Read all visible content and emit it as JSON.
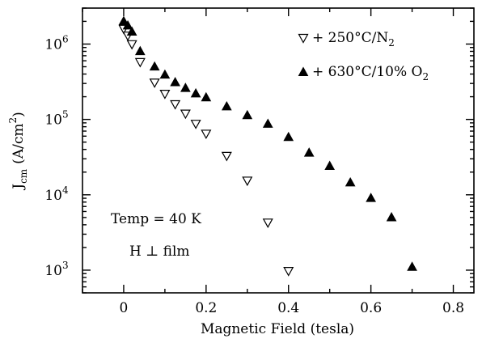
{
  "chart_data": {
    "type": "scatter",
    "title": "",
    "xlabel": "Magnetic Field (tesla)",
    "ylabel": {
      "main": "J",
      "sub": "cm",
      "unit_open": "(A/cm",
      "unit_sup": "2",
      "unit_close": ")"
    },
    "xlim": [
      -0.1,
      0.85
    ],
    "ylim": [
      500,
      3000000
    ],
    "yscale": "log",
    "grid": false,
    "legend_placement": "top-right",
    "x_ticks": [
      {
        "value": 0,
        "label": "0"
      },
      {
        "value": 0.2,
        "label": "0.2"
      },
      {
        "value": 0.4,
        "label": "0.4"
      },
      {
        "value": 0.6,
        "label": "0.6"
      },
      {
        "value": 0.8,
        "label": "0.8"
      }
    ],
    "y_ticks": [
      {
        "value": 1000,
        "base": "10",
        "exp": "3"
      },
      {
        "value": 10000,
        "base": "10",
        "exp": "4"
      },
      {
        "value": 100000,
        "base": "10",
        "exp": "5"
      },
      {
        "value": 1000000,
        "base": "10",
        "exp": "6"
      }
    ],
    "series": [
      {
        "name": "+ 250°C/N",
        "name_sub": "2",
        "marker": "triangle-down-open",
        "color": "#000000",
        "x": [
          0.0,
          0.01,
          0.02,
          0.04,
          0.075,
          0.1,
          0.125,
          0.15,
          0.175,
          0.2,
          0.25,
          0.3,
          0.35,
          0.4
        ],
        "y": [
          1600000,
          1300000,
          1000000,
          580000,
          310000,
          220000,
          160000,
          120000,
          88000,
          65000,
          33000,
          15500,
          4300,
          980
        ]
      },
      {
        "name": "+ 630°C/10% O",
        "name_sub": "2",
        "marker": "triangle-up-filled",
        "color": "#000000",
        "x": [
          0.0,
          0.01,
          0.02,
          0.04,
          0.075,
          0.1,
          0.125,
          0.15,
          0.175,
          0.2,
          0.25,
          0.3,
          0.35,
          0.4,
          0.45,
          0.5,
          0.55,
          0.6,
          0.65,
          0.7
        ],
        "y": [
          2000000,
          1750000,
          1450000,
          800000,
          500000,
          390000,
          310000,
          260000,
          220000,
          195000,
          148000,
          113000,
          87000,
          58000,
          36000,
          24000,
          14500,
          9000,
          5000,
          1100
        ]
      }
    ],
    "annotations": [
      {
        "text": "Temp = 40 K"
      },
      {
        "text": "H ⊥ film"
      }
    ]
  }
}
